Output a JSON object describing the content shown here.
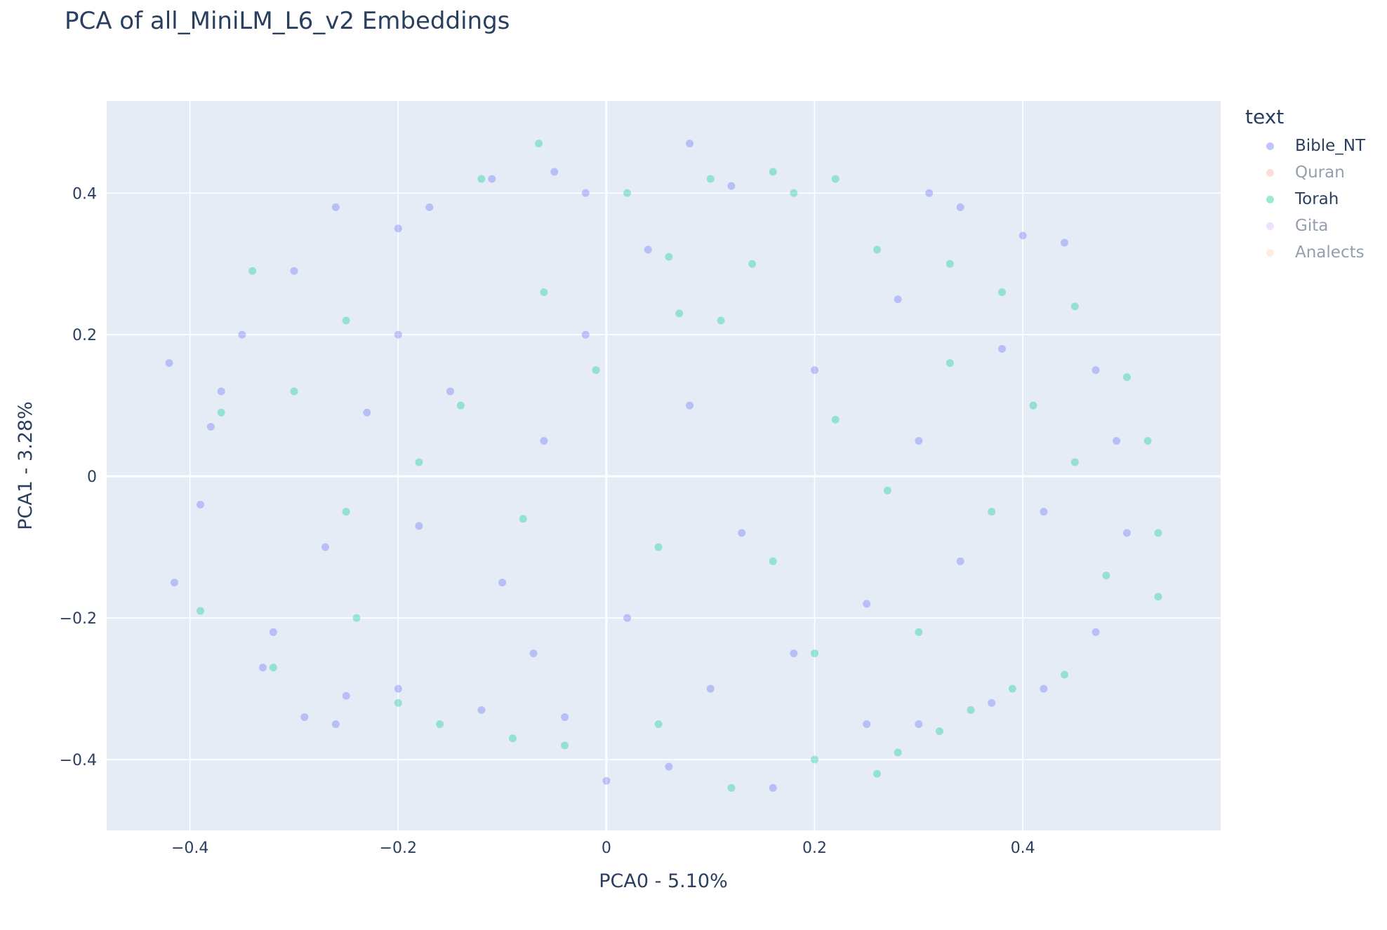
{
  "chart_data": {
    "type": "scatter",
    "title": "PCA of all_MiniLM_L6_v2 Embeddings",
    "xlabel": "PCA0 - 5.10%",
    "ylabel": "PCA1 - 3.28%",
    "xlim": [
      -0.48,
      0.59
    ],
    "ylim": [
      -0.5,
      0.53
    ],
    "x_ticks": [
      -0.4,
      -0.2,
      0,
      0.2,
      0.4
    ],
    "x_tick_labels": [
      "−0.4",
      "−0.2",
      "0",
      "0.2",
      "0.4"
    ],
    "y_ticks": [
      -0.4,
      -0.2,
      0,
      0.2,
      0.4
    ],
    "y_tick_labels": [
      "−0.4",
      "−0.2",
      "0",
      "0.2",
      "0.4"
    ],
    "grid": true,
    "legend_title": "text",
    "legend_position": "right",
    "series": [
      {
        "name": "Bible_NT",
        "color": "#636efa",
        "visible": true,
        "points": [
          [
            -0.42,
            0.16
          ],
          [
            -0.415,
            -0.15
          ],
          [
            -0.39,
            -0.04
          ],
          [
            -0.38,
            0.07
          ],
          [
            -0.35,
            0.2
          ],
          [
            -0.33,
            -0.27
          ],
          [
            -0.3,
            0.29
          ],
          [
            -0.29,
            -0.34
          ],
          [
            -0.26,
            0.38
          ],
          [
            -0.25,
            -0.31
          ],
          [
            -0.2,
            0.35
          ],
          [
            -0.17,
            0.38
          ],
          [
            -0.11,
            0.42
          ],
          [
            -0.05,
            0.43
          ],
          [
            -0.02,
            0.4
          ],
          [
            0.08,
            0.47
          ],
          [
            0.04,
            0.32
          ],
          [
            0.12,
            0.41
          ],
          [
            0.31,
            0.4
          ],
          [
            0.34,
            0.38
          ],
          [
            0.4,
            0.34
          ],
          [
            0.44,
            0.33
          ],
          [
            0.47,
            0.15
          ],
          [
            0.49,
            0.05
          ],
          [
            0.5,
            -0.08
          ],
          [
            0.47,
            -0.22
          ],
          [
            0.42,
            -0.3
          ],
          [
            0.37,
            -0.32
          ],
          [
            0.3,
            -0.35
          ],
          [
            0.25,
            -0.35
          ],
          [
            0.16,
            -0.44
          ],
          [
            0.06,
            -0.41
          ],
          [
            0.0,
            -0.43
          ],
          [
            -0.04,
            -0.34
          ],
          [
            -0.07,
            -0.25
          ],
          [
            -0.12,
            -0.33
          ],
          [
            -0.2,
            -0.3
          ],
          [
            -0.26,
            -0.35
          ],
          [
            -0.32,
            -0.22
          ],
          [
            -0.37,
            0.12
          ],
          [
            -0.23,
            0.09
          ],
          [
            -0.18,
            -0.07
          ],
          [
            -0.15,
            0.12
          ],
          [
            -0.1,
            -0.15
          ],
          [
            -0.06,
            0.05
          ],
          [
            0.02,
            -0.2
          ],
          [
            0.08,
            0.1
          ],
          [
            0.13,
            -0.08
          ],
          [
            0.2,
            0.15
          ],
          [
            0.25,
            -0.18
          ],
          [
            0.3,
            0.05
          ],
          [
            0.34,
            -0.12
          ],
          [
            0.38,
            0.18
          ],
          [
            0.28,
            0.25
          ],
          [
            0.18,
            -0.25
          ],
          [
            -0.02,
            0.2
          ],
          [
            -0.2,
            0.2
          ],
          [
            -0.27,
            -0.1
          ],
          [
            0.42,
            -0.05
          ],
          [
            0.1,
            -0.3
          ]
        ]
      },
      {
        "name": "Quran",
        "color": "#ef553b",
        "visible": false,
        "points": []
      },
      {
        "name": "Torah",
        "color": "#00cc96",
        "visible": true,
        "points": [
          [
            -0.39,
            -0.19
          ],
          [
            -0.37,
            0.09
          ],
          [
            -0.34,
            0.29
          ],
          [
            -0.32,
            -0.27
          ],
          [
            -0.25,
            0.22
          ],
          [
            -0.2,
            -0.32
          ],
          [
            -0.16,
            -0.35
          ],
          [
            -0.12,
            0.42
          ],
          [
            -0.065,
            0.47
          ],
          [
            -0.04,
            -0.38
          ],
          [
            0.02,
            0.4
          ],
          [
            0.06,
            0.31
          ],
          [
            0.1,
            0.42
          ],
          [
            0.16,
            0.43
          ],
          [
            0.18,
            0.4
          ],
          [
            0.22,
            0.42
          ],
          [
            0.26,
            0.32
          ],
          [
            0.33,
            0.3
          ],
          [
            0.38,
            0.26
          ],
          [
            0.45,
            0.24
          ],
          [
            0.5,
            0.14
          ],
          [
            0.52,
            0.05
          ],
          [
            0.53,
            -0.08
          ],
          [
            0.53,
            -0.17
          ],
          [
            0.48,
            -0.14
          ],
          [
            0.44,
            -0.28
          ],
          [
            0.39,
            -0.3
          ],
          [
            0.35,
            -0.33
          ],
          [
            0.32,
            -0.36
          ],
          [
            0.28,
            -0.39
          ],
          [
            0.26,
            -0.42
          ],
          [
            0.2,
            -0.4
          ],
          [
            0.12,
            -0.44
          ],
          [
            0.05,
            -0.35
          ],
          [
            -0.09,
            -0.37
          ],
          [
            -0.24,
            -0.2
          ],
          [
            -0.3,
            0.12
          ],
          [
            -0.14,
            0.1
          ],
          [
            -0.08,
            -0.06
          ],
          [
            -0.01,
            0.15
          ],
          [
            0.05,
            -0.1
          ],
          [
            0.11,
            0.22
          ],
          [
            0.16,
            -0.12
          ],
          [
            0.22,
            0.08
          ],
          [
            0.27,
            -0.02
          ],
          [
            0.33,
            0.16
          ],
          [
            0.37,
            -0.05
          ],
          [
            0.41,
            0.1
          ],
          [
            0.07,
            0.23
          ],
          [
            -0.18,
            0.02
          ],
          [
            0.3,
            -0.22
          ],
          [
            0.14,
            0.3
          ],
          [
            0.45,
            0.02
          ],
          [
            -0.06,
            0.26
          ],
          [
            0.2,
            -0.25
          ],
          [
            -0.25,
            -0.05
          ]
        ]
      },
      {
        "name": "Gita",
        "color": "#ab63fa",
        "visible": false,
        "points": []
      },
      {
        "name": "Analects",
        "color": "#ffa15a",
        "visible": false,
        "points": []
      }
    ]
  }
}
